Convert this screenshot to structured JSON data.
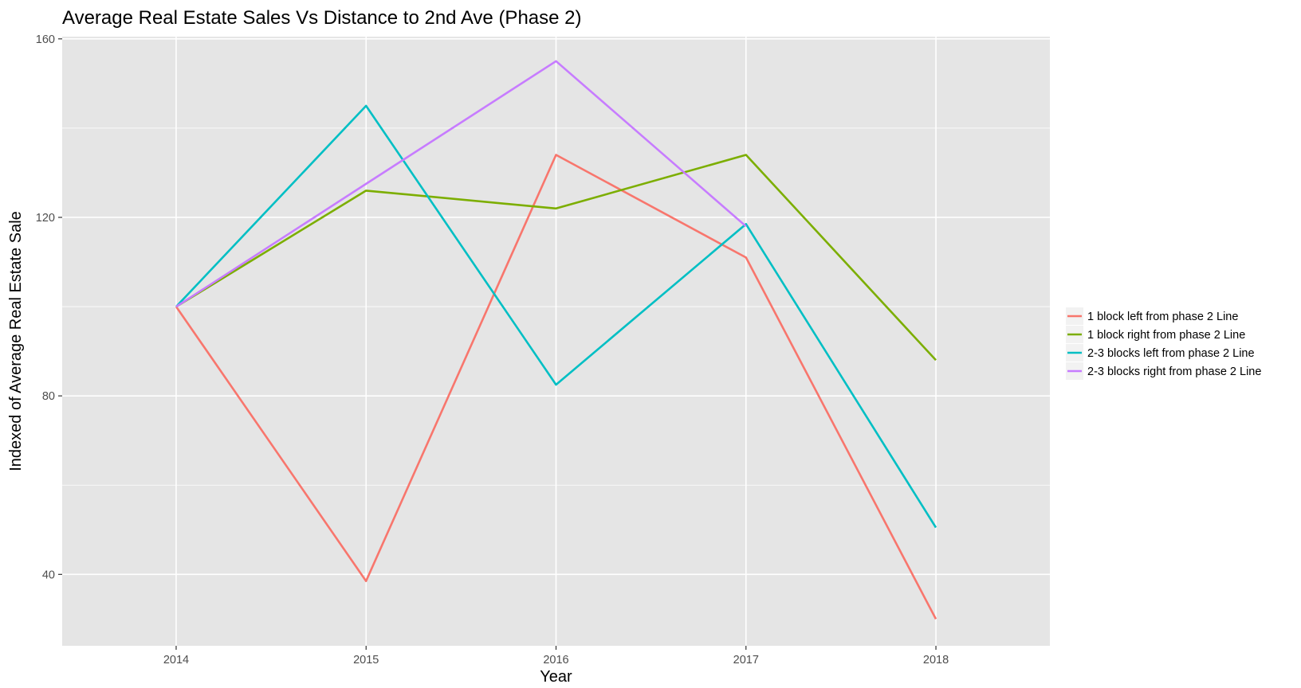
{
  "chart_data": {
    "type": "line",
    "title": "Average Real Estate Sales Vs Distance to 2nd Ave (Phase 2)",
    "xlabel": "Year",
    "ylabel": "Indexed of Average Real Estate Sale",
    "x": [
      2014,
      2015,
      2016,
      2017,
      2018
    ],
    "x_tick_labels": [
      "2014",
      "2015",
      "2016",
      "2017",
      "2018"
    ],
    "xlim": [
      2013.4,
      2018.6
    ],
    "ylim": [
      24,
      160.5
    ],
    "y_ticks": [
      40,
      80,
      120,
      160
    ],
    "y_tick_labels": [
      "40",
      "80",
      "120",
      "160"
    ],
    "grid": true,
    "legend_position": "right",
    "series": [
      {
        "name": "1 block left from phase 2 Line",
        "color": "#F8766D",
        "values": [
          100,
          38.5,
          134,
          111,
          30
        ]
      },
      {
        "name": "1 block right from phase 2 Line",
        "color": "#7CAE00",
        "values": [
          100,
          126,
          122,
          134,
          88
        ]
      },
      {
        "name": "2-3 blocks left from phase 2 Line",
        "color": "#00BFC4",
        "values": [
          100,
          145,
          82.5,
          118.5,
          50.5
        ]
      },
      {
        "name": "2-3 blocks right from phase 2 Line",
        "color": "#C77CFF",
        "values": [
          100,
          127.5,
          155,
          118,
          null
        ]
      }
    ],
    "panel_background": "#E5E5E5",
    "grid_color": "#FFFFFF"
  }
}
